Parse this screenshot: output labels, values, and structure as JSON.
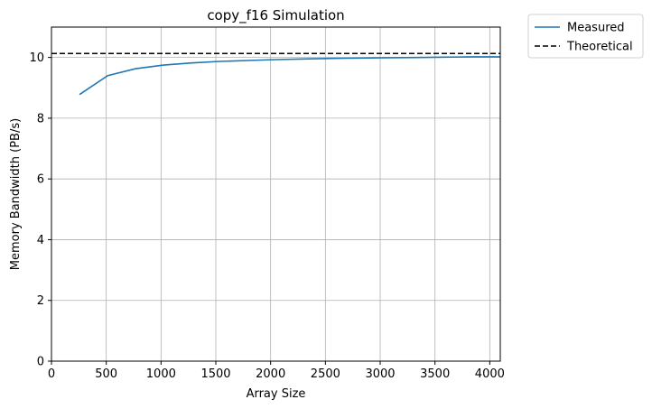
{
  "chart_data": {
    "type": "line",
    "title": "copy_f16 Simulation",
    "xlabel": "Array Size",
    "ylabel": "Memory Bandwidth (PB/s)",
    "xlim": [
      0,
      4096
    ],
    "ylim": [
      0,
      11
    ],
    "xticks": [
      0,
      500,
      1000,
      1500,
      2000,
      2500,
      3000,
      3500,
      4000
    ],
    "yticks": [
      0,
      2,
      4,
      6,
      8,
      10
    ],
    "grid": true,
    "legend_position": "outside-top-right",
    "series": [
      {
        "name": "Measured",
        "style": "solid",
        "color": "#1f77b4",
        "x": [
          256,
          512,
          768,
          1024,
          1280,
          1536,
          1792,
          2048,
          2304,
          2560,
          2816,
          3072,
          3328,
          3584,
          3840,
          4096
        ],
        "y": [
          8.78,
          9.4,
          9.63,
          9.75,
          9.82,
          9.87,
          9.9,
          9.93,
          9.95,
          9.97,
          9.98,
          9.99,
          10.0,
          10.01,
          10.02,
          10.02
        ]
      },
      {
        "name": "Theoretical",
        "style": "dashed",
        "color": "#000000",
        "x": [
          0,
          4096
        ],
        "y": [
          10.13,
          10.13
        ]
      }
    ]
  }
}
